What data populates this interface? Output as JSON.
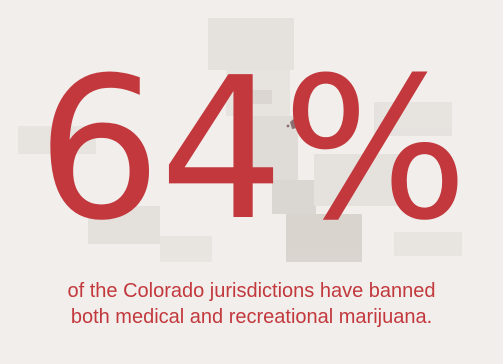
{
  "stat": {
    "value": "64%",
    "caption_line1": "of the Colorado jurisdictions have banned",
    "caption_line2": "both medical and recreational marijuana."
  },
  "colors": {
    "accent": "#c2383d",
    "background": "#f1eeeb",
    "map_fill_light": "#e0ddda",
    "map_fill_dark": "#cfcbc7"
  },
  "icons": {
    "map": "colorado-jurisdictions-map-background"
  }
}
